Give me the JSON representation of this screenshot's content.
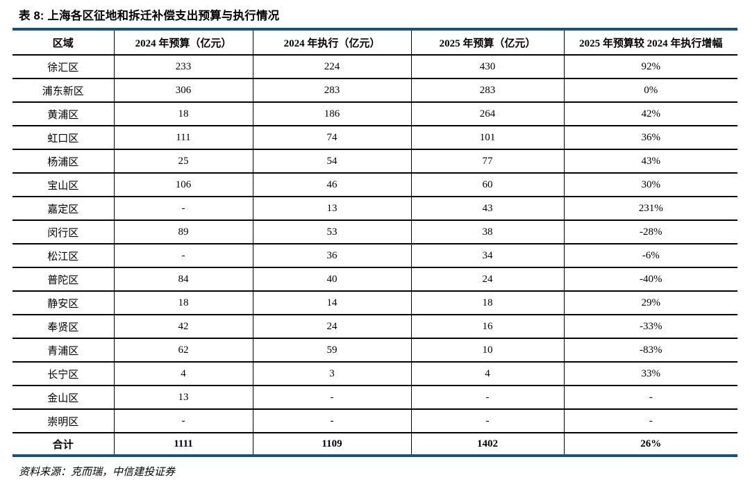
{
  "title": "表 8:  上海各区征地和拆迁补偿支出预算与执行情况",
  "source": "资料来源：克而瑞，中信建投证券",
  "colors": {
    "accent_blue": "#14537E",
    "border_black": "#000000",
    "text": "#000000"
  },
  "chart_data": {
    "type": "table",
    "title": "表 8: 上海各区征地和拆迁补偿支出预算与执行情况",
    "columns": [
      "区域",
      "2024 年预算（亿元）",
      "2024 年执行（亿元）",
      "2025 年预算（亿元）",
      "2025 年预算较 2024 年执行增幅"
    ],
    "rows": [
      [
        "徐汇区",
        "233",
        "224",
        "430",
        "92%"
      ],
      [
        "浦东新区",
        "306",
        "283",
        "283",
        "0%"
      ],
      [
        "黄浦区",
        "18",
        "186",
        "264",
        "42%"
      ],
      [
        "虹口区",
        "111",
        "74",
        "101",
        "36%"
      ],
      [
        "杨浦区",
        "25",
        "54",
        "77",
        "43%"
      ],
      [
        "宝山区",
        "106",
        "46",
        "60",
        "30%"
      ],
      [
        "嘉定区",
        "-",
        "13",
        "43",
        "231%"
      ],
      [
        "闵行区",
        "89",
        "53",
        "38",
        "-28%"
      ],
      [
        "松江区",
        "-",
        "36",
        "34",
        "-6%"
      ],
      [
        "普陀区",
        "84",
        "40",
        "24",
        "-40%"
      ],
      [
        "静安区",
        "18",
        "14",
        "18",
        "29%"
      ],
      [
        "奉贤区",
        "42",
        "24",
        "16",
        "-33%"
      ],
      [
        "青浦区",
        "62",
        "59",
        "10",
        "-83%"
      ],
      [
        "长宁区",
        "4",
        "3",
        "4",
        "33%"
      ],
      [
        "金山区",
        "13",
        "-",
        "-",
        "-"
      ],
      [
        "崇明区",
        "-",
        "-",
        "-",
        "-"
      ]
    ],
    "total_row": [
      "合计",
      "1111",
      "1109",
      "1402",
      "26%"
    ]
  }
}
